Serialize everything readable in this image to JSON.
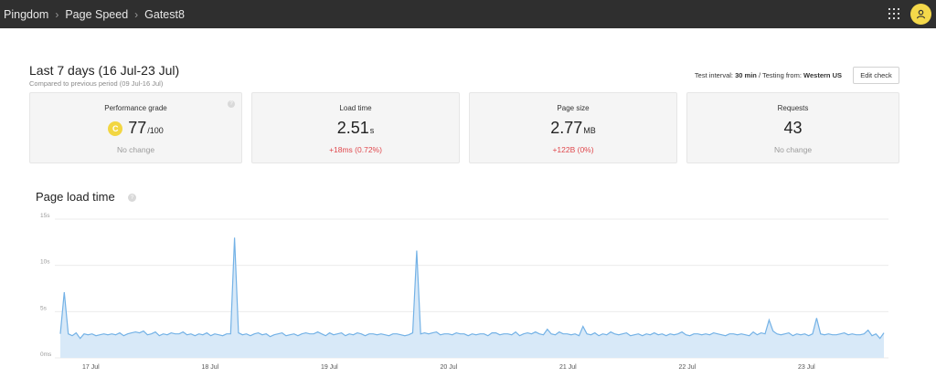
{
  "breadcrumbs": [
    "Pingdom",
    "Page Speed",
    "Gatest8"
  ],
  "header": {
    "title": "Last 7 days (16 Jul-23 Jul)",
    "subtitle": "Compared to previous period (09 Jul-16 Jul)",
    "test_interval_label": "Test interval:",
    "test_interval_value": "30 min",
    "testing_from_label": "/ Testing from:",
    "testing_from_value": "Western US",
    "edit_button": "Edit check"
  },
  "cards": {
    "grade": {
      "title": "Performance grade",
      "badge": "C",
      "value": "77",
      "unit": "/100",
      "delta": "No change"
    },
    "load": {
      "title": "Load time",
      "value": "2.51",
      "unit": "s",
      "delta": "+18ms (0.72%)"
    },
    "size": {
      "title": "Page size",
      "value": "2.77",
      "unit": "MB",
      "delta": "+122B (0%)"
    },
    "requests": {
      "title": "Requests",
      "value": "43",
      "unit": "",
      "delta": "No change"
    }
  },
  "colors": {
    "accent_yellow": "#f2d642",
    "delta_bad": "#e0474c",
    "line": "#74b2e6",
    "area": "#d8e9f8"
  },
  "chart_title": "Page load time",
  "chart_data": {
    "type": "area",
    "title": "Page load time",
    "xlabel": "",
    "ylabel": "",
    "ylim": [
      0,
      15
    ],
    "y_ticks": [
      "0ms",
      "5s",
      "10s",
      "15s"
    ],
    "x_ticks": [
      "17 Jul",
      "18 Jul",
      "19 Jul",
      "20 Jul",
      "21 Jul",
      "22 Jul",
      "23 Jul"
    ],
    "grid": true,
    "series": [
      {
        "values": [
          2.6,
          7.1,
          2.6,
          2.4,
          2.7,
          2.1,
          2.6,
          2.5,
          2.6,
          2.4,
          2.5,
          2.6,
          2.5,
          2.6,
          2.5,
          2.7,
          2.4,
          2.6,
          2.7,
          2.8,
          2.7,
          2.9,
          2.5,
          2.6,
          2.8,
          2.4,
          2.6,
          2.5,
          2.7,
          2.6,
          2.6,
          2.8,
          2.5,
          2.6,
          2.4,
          2.6,
          2.5,
          2.7,
          2.4,
          2.6,
          2.5,
          2.4,
          2.6,
          2.6,
          13.0,
          2.7,
          2.5,
          2.6,
          2.4,
          2.6,
          2.7,
          2.5,
          2.6,
          2.3,
          2.5,
          2.6,
          2.7,
          2.4,
          2.5,
          2.6,
          2.4,
          2.6,
          2.7,
          2.6,
          2.6,
          2.8,
          2.6,
          2.4,
          2.7,
          2.5,
          2.6,
          2.7,
          2.4,
          2.6,
          2.5,
          2.7,
          2.6,
          2.4,
          2.6,
          2.6,
          2.5,
          2.6,
          2.5,
          2.4,
          2.6,
          2.6,
          2.5,
          2.4,
          2.5,
          2.7,
          11.6,
          2.6,
          2.7,
          2.6,
          2.7,
          2.8,
          2.5,
          2.6,
          2.6,
          2.5,
          2.7,
          2.6,
          2.6,
          2.4,
          2.6,
          2.5,
          2.6,
          2.6,
          2.4,
          2.7,
          2.7,
          2.5,
          2.6,
          2.6,
          2.5,
          2.8,
          2.4,
          2.6,
          2.7,
          2.6,
          2.8,
          2.6,
          2.5,
          3.1,
          2.6,
          2.5,
          2.8,
          2.6,
          2.6,
          2.5,
          2.6,
          2.4,
          3.4,
          2.6,
          2.5,
          2.7,
          2.4,
          2.6,
          2.5,
          2.8,
          2.6,
          2.5,
          2.6,
          2.7,
          2.4,
          2.5,
          2.6,
          2.4,
          2.6,
          2.5,
          2.7,
          2.5,
          2.6,
          2.4,
          2.6,
          2.5,
          2.6,
          2.8,
          2.5,
          2.4,
          2.6,
          2.6,
          2.5,
          2.6,
          2.5,
          2.7,
          2.6,
          2.5,
          2.4,
          2.6,
          2.6,
          2.5,
          2.6,
          2.5,
          2.4,
          2.8,
          2.5,
          2.7,
          2.6,
          4.1,
          2.9,
          2.6,
          2.5,
          2.6,
          2.7,
          2.4,
          2.6,
          2.5,
          2.6,
          2.4,
          2.6,
          4.3,
          2.6,
          2.5,
          2.6,
          2.5,
          2.5,
          2.6,
          2.7,
          2.5,
          2.6,
          2.5,
          2.5,
          2.6,
          3.0,
          2.4,
          2.6,
          2.1,
          2.7
        ]
      }
    ]
  }
}
